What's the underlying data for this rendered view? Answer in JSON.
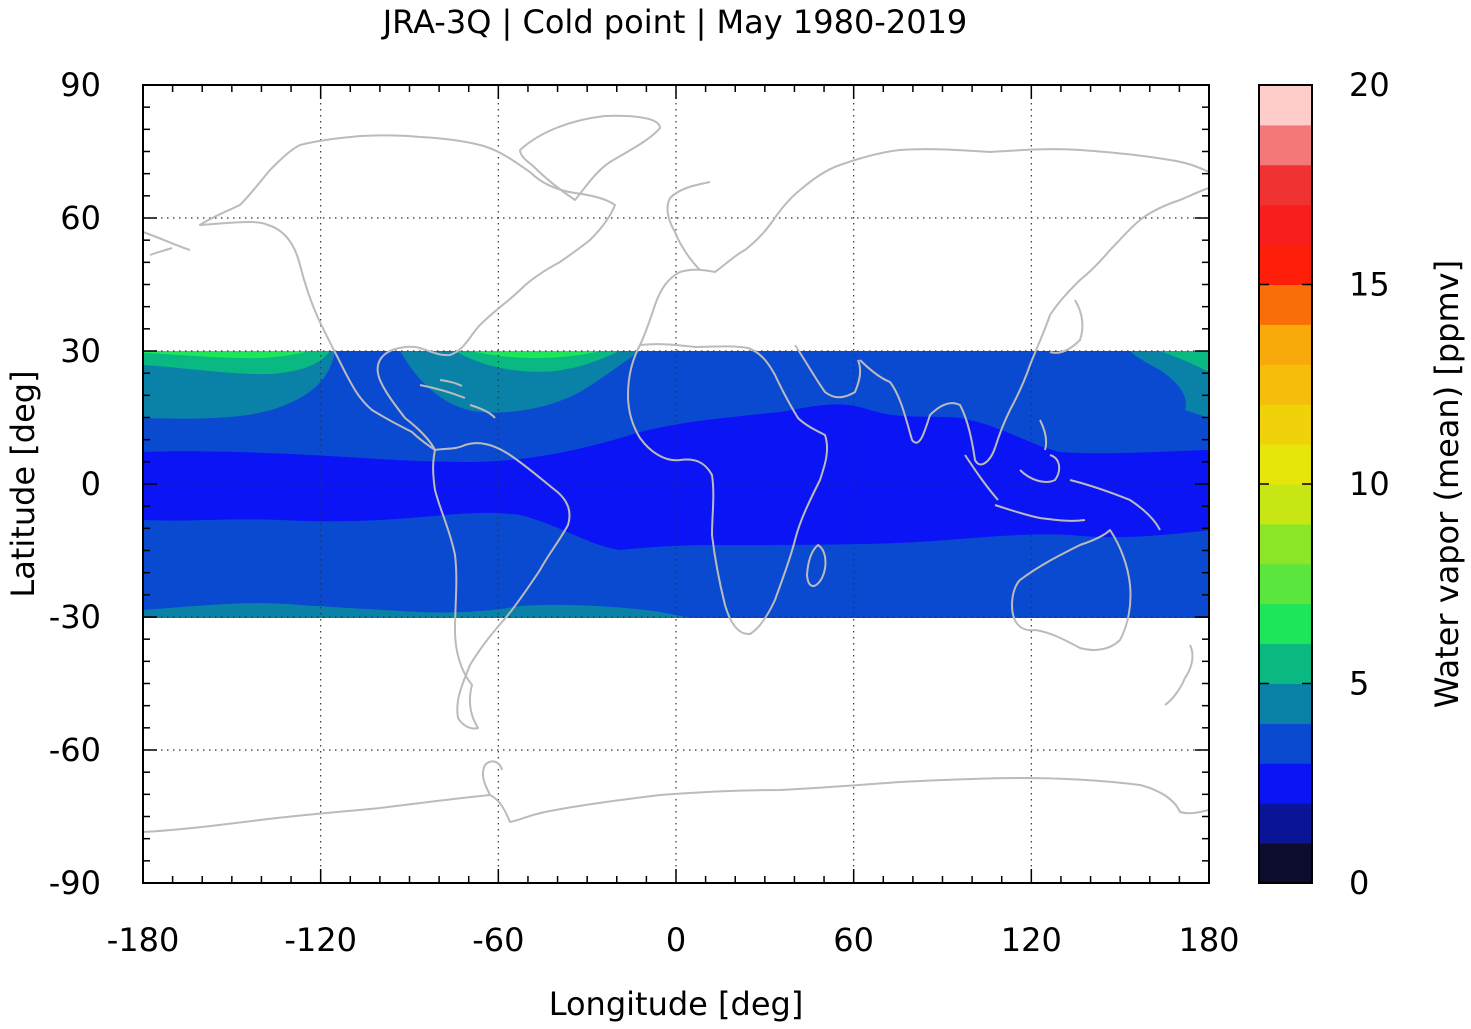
{
  "chart_data": {
    "type": "heatmap",
    "title": "JRA-3Q | Cold point | May 1980-2019",
    "xlabel": "Longitude [deg]",
    "ylabel": "Latitude [deg]",
    "xlim": [
      -180,
      180
    ],
    "ylim": [
      -90,
      90
    ],
    "xticks": [
      -180,
      -120,
      -60,
      0,
      60,
      120,
      180
    ],
    "yticks": [
      -90,
      -60,
      -30,
      0,
      30,
      60,
      90
    ],
    "grid": true,
    "data_lat_range": [
      -30,
      30
    ],
    "colorbar": {
      "label": "Water vapor (mean) [ppmv]",
      "range": [
        0,
        20
      ],
      "ticks": [
        0,
        5,
        10,
        15,
        20
      ],
      "levels": [
        {
          "from": 0,
          "to": 1,
          "color": "#0c0c2c"
        },
        {
          "from": 1,
          "to": 2,
          "color": "#0a1496"
        },
        {
          "from": 2,
          "to": 3,
          "color": "#0a14f5"
        },
        {
          "from": 3,
          "to": 4,
          "color": "#0a4ad0"
        },
        {
          "from": 4,
          "to": 5,
          "color": "#0a82a8"
        },
        {
          "from": 5,
          "to": 6,
          "color": "#0ab882"
        },
        {
          "from": 6,
          "to": 7,
          "color": "#1ee65a"
        },
        {
          "from": 7,
          "to": 8,
          "color": "#5ae63c"
        },
        {
          "from": 8,
          "to": 9,
          "color": "#8ce628"
        },
        {
          "from": 9,
          "to": 10,
          "color": "#c8e614"
        },
        {
          "from": 10,
          "to": 11,
          "color": "#e6e60a"
        },
        {
          "from": 11,
          "to": 12,
          "color": "#f0d20a"
        },
        {
          "from": 12,
          "to": 13,
          "color": "#f5be0a"
        },
        {
          "from": 13,
          "to": 14,
          "color": "#f7aa0a"
        },
        {
          "from": 14,
          "to": 15,
          "color": "#fa6e0a"
        },
        {
          "from": 15,
          "to": 16,
          "color": "#ff1e0a"
        },
        {
          "from": 16,
          "to": 17,
          "color": "#f81e1e"
        },
        {
          "from": 17,
          "to": 18,
          "color": "#f03232"
        },
        {
          "from": 18,
          "to": 19,
          "color": "#f57878"
        },
        {
          "from": 19,
          "to": 20,
          "color": "#ffcccc"
        }
      ]
    },
    "regions_ppmv": [
      {
        "level": "4-5",
        "description_lon_lat": "teal band near 20-30N over Pacific and 25-30S",
        "color": "#0a82a8"
      },
      {
        "level": "3-4",
        "color": "#0a4ad0"
      },
      {
        "level": "2-3",
        "color": "#0a14f5"
      },
      {
        "level": "5-6",
        "color": "#0ab882"
      },
      {
        "level": "6-7",
        "color": "#1ee65a"
      }
    ],
    "coastline_color": "#bbbbbb"
  }
}
